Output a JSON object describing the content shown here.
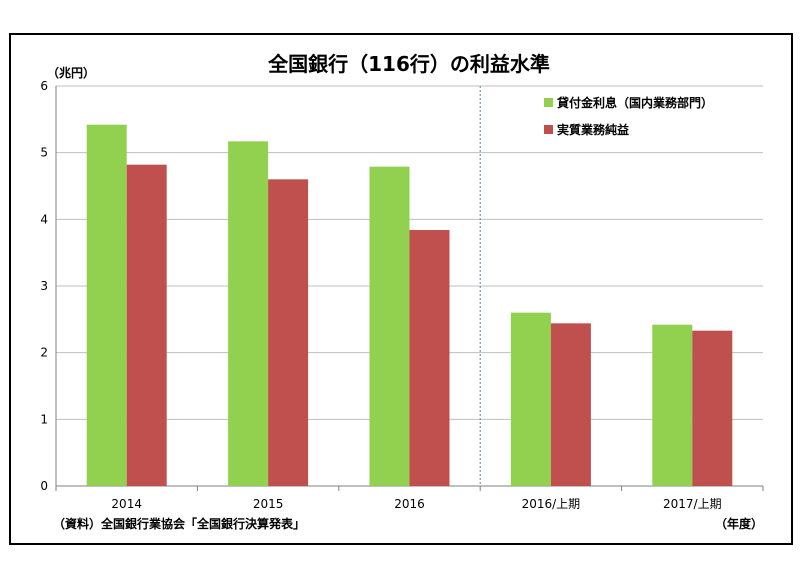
{
  "chart_data": {
    "type": "bar",
    "title": "全国銀行（116行）の利益水準",
    "ylabel": "（兆円）",
    "xlabel": "（年度）",
    "ylim": [
      0,
      6
    ],
    "yticks": [
      "0",
      "1",
      "2",
      "3",
      "4",
      "5",
      "6"
    ],
    "grid": true,
    "categories": [
      "2014",
      "2015",
      "2016",
      "2016/上期",
      "2017/上期"
    ],
    "series": [
      {
        "name": "貸付金利息（国内業務部門）",
        "color": "#92d050",
        "values": [
          5.42,
          5.17,
          4.79,
          2.6,
          2.42
        ]
      },
      {
        "name": "実質業務純益",
        "color": "#c0504d",
        "values": [
          4.82,
          4.6,
          3.84,
          2.44,
          2.33
        ]
      }
    ],
    "legend_position": "top-right",
    "separator_after_category": 2,
    "source": "（資料）全国銀行業協会「全国銀行決算発表」"
  }
}
